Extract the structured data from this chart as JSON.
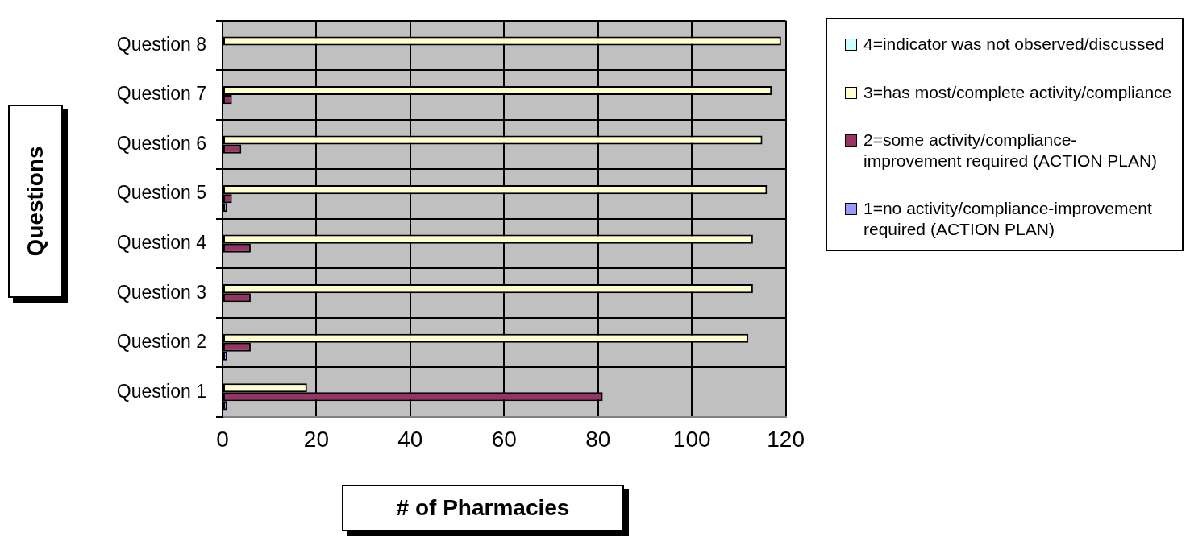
{
  "chart_data": {
    "type": "bar",
    "orientation": "horizontal",
    "xlabel": "# of Pharmacies",
    "ylabel": "Questions",
    "categories": [
      "Question 8",
      "Question 7",
      "Question 6",
      "Question 5",
      "Question 4",
      "Question 3",
      "Question 2",
      "Question 1"
    ],
    "series": [
      {
        "name": "4=indicator was not observed/discussed",
        "color": "#ccffff",
        "values": [
          0,
          0,
          0,
          0,
          0,
          0,
          0,
          0
        ]
      },
      {
        "name": "3=has most/complete activity/compliance",
        "color": "#ffffcc",
        "values": [
          119,
          117,
          115,
          116,
          113,
          113,
          112,
          18
        ]
      },
      {
        "name": "2=some activity/compliance-improvement required (ACTION PLAN)",
        "color": "#993366",
        "values": [
          0,
          2,
          4,
          2,
          6,
          6,
          6,
          81
        ]
      },
      {
        "name": "1=no activity/compliance-improvement required (ACTION PLAN)",
        "color": "#9999ff",
        "values": [
          0,
          0,
          0,
          1,
          0,
          0,
          1,
          1
        ]
      }
    ],
    "xlim": [
      0,
      120
    ],
    "xticks": [
      0,
      20,
      40,
      60,
      80,
      100,
      120
    ],
    "grid": true,
    "legend": "right"
  }
}
